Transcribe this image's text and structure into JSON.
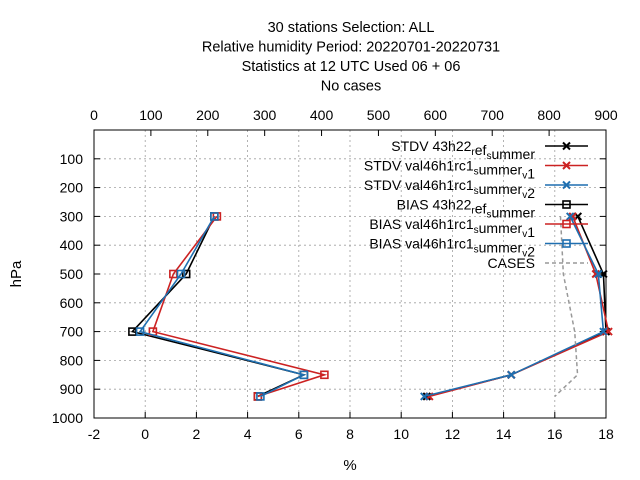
{
  "chart_data": {
    "type": "line",
    "title_lines": [
      "30 stations Selection: ALL",
      "Relative humidity  Period: 20220701-20220731",
      "Statistics at 12 UTC  Used  06  + 06",
      "No cases"
    ],
    "xlabel": "%",
    "ylabel": "hPa",
    "xlim": [
      -2,
      18
    ],
    "x_ticks": [
      "-2",
      "0",
      "2",
      "4",
      "6",
      "8",
      "10",
      "12",
      "14",
      "16",
      "18"
    ],
    "x2lim": [
      0,
      900
    ],
    "x2_ticks": [
      "0",
      "100",
      "200",
      "300",
      "400",
      "500",
      "600",
      "700",
      "800",
      "900"
    ],
    "ylim": [
      1000,
      0
    ],
    "y_ticks": [
      "100",
      "200",
      "300",
      "400",
      "500",
      "600",
      "700",
      "800",
      "900",
      "1000"
    ],
    "y_reversed": true,
    "grid": true,
    "legend_position": "top-right",
    "series": [
      {
        "name": "STDV 43h22_ref_summer",
        "legend": {
          "parts": [
            [
              "STDV 43h22",
              "n"
            ],
            [
              "r",
              "sub"
            ],
            [
              "ef",
              "n"
            ],
            [
              "s",
              "sub"
            ],
            [
              "ummer",
              "n"
            ]
          ]
        },
        "color": "#000000",
        "marker": "x",
        "points": [
          [
            16.9,
            300
          ],
          [
            17.9,
            500
          ],
          [
            18.0,
            700
          ],
          [
            14.3,
            850
          ],
          [
            11.0,
            925
          ]
        ]
      },
      {
        "name": "STDV val46h1rc1_summer_v1",
        "legend": {
          "parts": [
            [
              "STDV val46h1rc1",
              "n"
            ],
            [
              "s",
              "sub"
            ],
            [
              "ummer",
              "n"
            ],
            [
              "v",
              "sub"
            ],
            [
              "1",
              "n"
            ]
          ]
        },
        "color": "#cc2222",
        "marker": "x",
        "points": [
          [
            16.7,
            300
          ],
          [
            17.6,
            500
          ],
          [
            18.1,
            700
          ],
          [
            14.3,
            850
          ],
          [
            11.1,
            925
          ]
        ]
      },
      {
        "name": "STDV val46h1rc1_summer_v2",
        "legend": {
          "parts": [
            [
              "STDV val46h1rc1",
              "n"
            ],
            [
              "s",
              "sub"
            ],
            [
              "ummer",
              "n"
            ],
            [
              "v",
              "sub"
            ],
            [
              "2",
              "n"
            ]
          ]
        },
        "color": "#1f6fb0",
        "marker": "x",
        "points": [
          [
            16.6,
            300
          ],
          [
            17.7,
            500
          ],
          [
            17.9,
            700
          ],
          [
            14.3,
            850
          ],
          [
            10.9,
            925
          ]
        ]
      },
      {
        "name": "BIAS 43h22_ref_summer",
        "legend": {
          "parts": [
            [
              "BIAS 43h22",
              "n"
            ],
            [
              "r",
              "sub"
            ],
            [
              "ef",
              "n"
            ],
            [
              "s",
              "sub"
            ],
            [
              "ummer",
              "n"
            ]
          ]
        },
        "color": "#000000",
        "marker": "square",
        "points": [
          [
            2.7,
            300
          ],
          [
            1.6,
            500
          ],
          [
            -0.5,
            700
          ],
          [
            6.2,
            850
          ],
          [
            4.4,
            925
          ]
        ]
      },
      {
        "name": "BIAS val46h1rc1_summer_v1",
        "legend": {
          "parts": [
            [
              "BIAS val46h1rc1",
              "n"
            ],
            [
              "s",
              "sub"
            ],
            [
              "ummer",
              "n"
            ],
            [
              "v",
              "sub"
            ],
            [
              "1",
              "n"
            ]
          ]
        },
        "color": "#cc2222",
        "marker": "square",
        "points": [
          [
            2.8,
            300
          ],
          [
            1.1,
            500
          ],
          [
            0.3,
            700
          ],
          [
            7.0,
            850
          ],
          [
            4.4,
            925
          ]
        ]
      },
      {
        "name": "BIAS val46h1rc1_summer_v2",
        "legend": {
          "parts": [
            [
              "BIAS val46h1rc1",
              "n"
            ],
            [
              "s",
              "sub"
            ],
            [
              "ummer",
              "n"
            ],
            [
              "v",
              "sub"
            ],
            [
              "2",
              "n"
            ]
          ]
        },
        "color": "#1f6fb0",
        "marker": "square",
        "points": [
          [
            2.7,
            300
          ],
          [
            1.4,
            500
          ],
          [
            -0.2,
            700
          ],
          [
            6.2,
            850
          ],
          [
            4.5,
            925
          ]
        ]
      },
      {
        "name": "CASES",
        "legend": {
          "parts": [
            [
              "CASES",
              "n"
            ]
          ]
        },
        "color": "#999999",
        "marker": "none",
        "dashed": true,
        "axis": "x2",
        "points": [
          [
            820,
            300
          ],
          [
            825,
            500
          ],
          [
            845,
            700
          ],
          [
            850,
            850
          ],
          [
            810,
            925
          ]
        ]
      }
    ]
  }
}
